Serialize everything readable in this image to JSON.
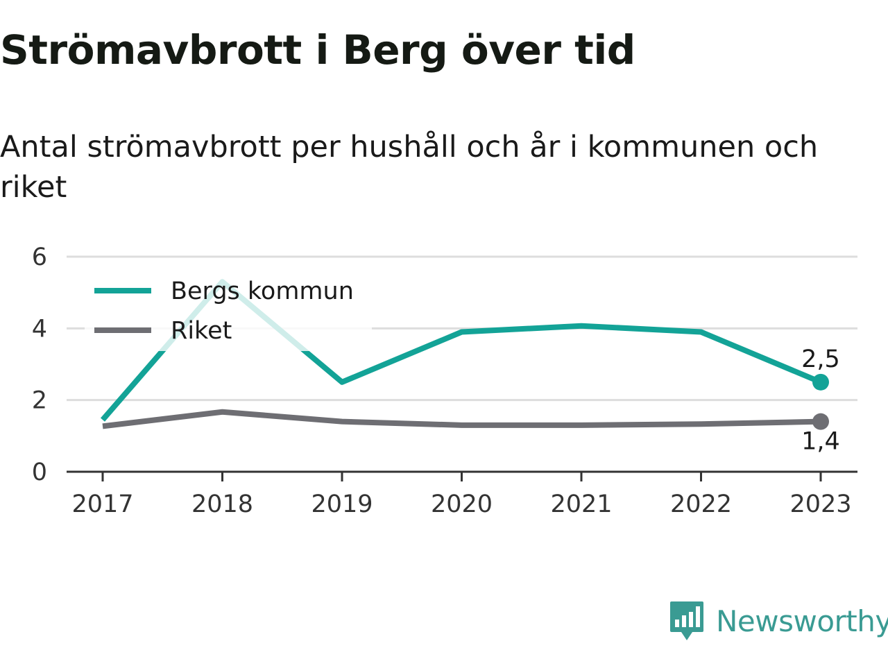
{
  "title": "Strömavbrott i Berg över tid",
  "subtitle": "Antal strömavbrott per hushåll och år i kommunen och riket",
  "brand": {
    "name": "Newsworthy",
    "logo_icon": "bar-chart-speech-bubble-icon",
    "color": "#3a9b93"
  },
  "chart_data": {
    "type": "line",
    "categories": [
      "2017",
      "2018",
      "2019",
      "2020",
      "2021",
      "2022",
      "2023"
    ],
    "series": [
      {
        "name": "Bergs kommun",
        "color": "#13a397",
        "values": [
          1.45,
          5.3,
          2.5,
          3.9,
          4.07,
          3.9,
          2.5
        ],
        "end_label": "2,5"
      },
      {
        "name": "Riket",
        "color": "#6e6e73",
        "values": [
          1.27,
          1.67,
          1.4,
          1.3,
          1.3,
          1.33,
          1.4
        ],
        "end_label": "1,4"
      }
    ],
    "yticks": [
      "0",
      "2",
      "4",
      "6"
    ],
    "ylim": [
      0,
      6
    ],
    "grid": true,
    "legend_position": "top-left"
  }
}
